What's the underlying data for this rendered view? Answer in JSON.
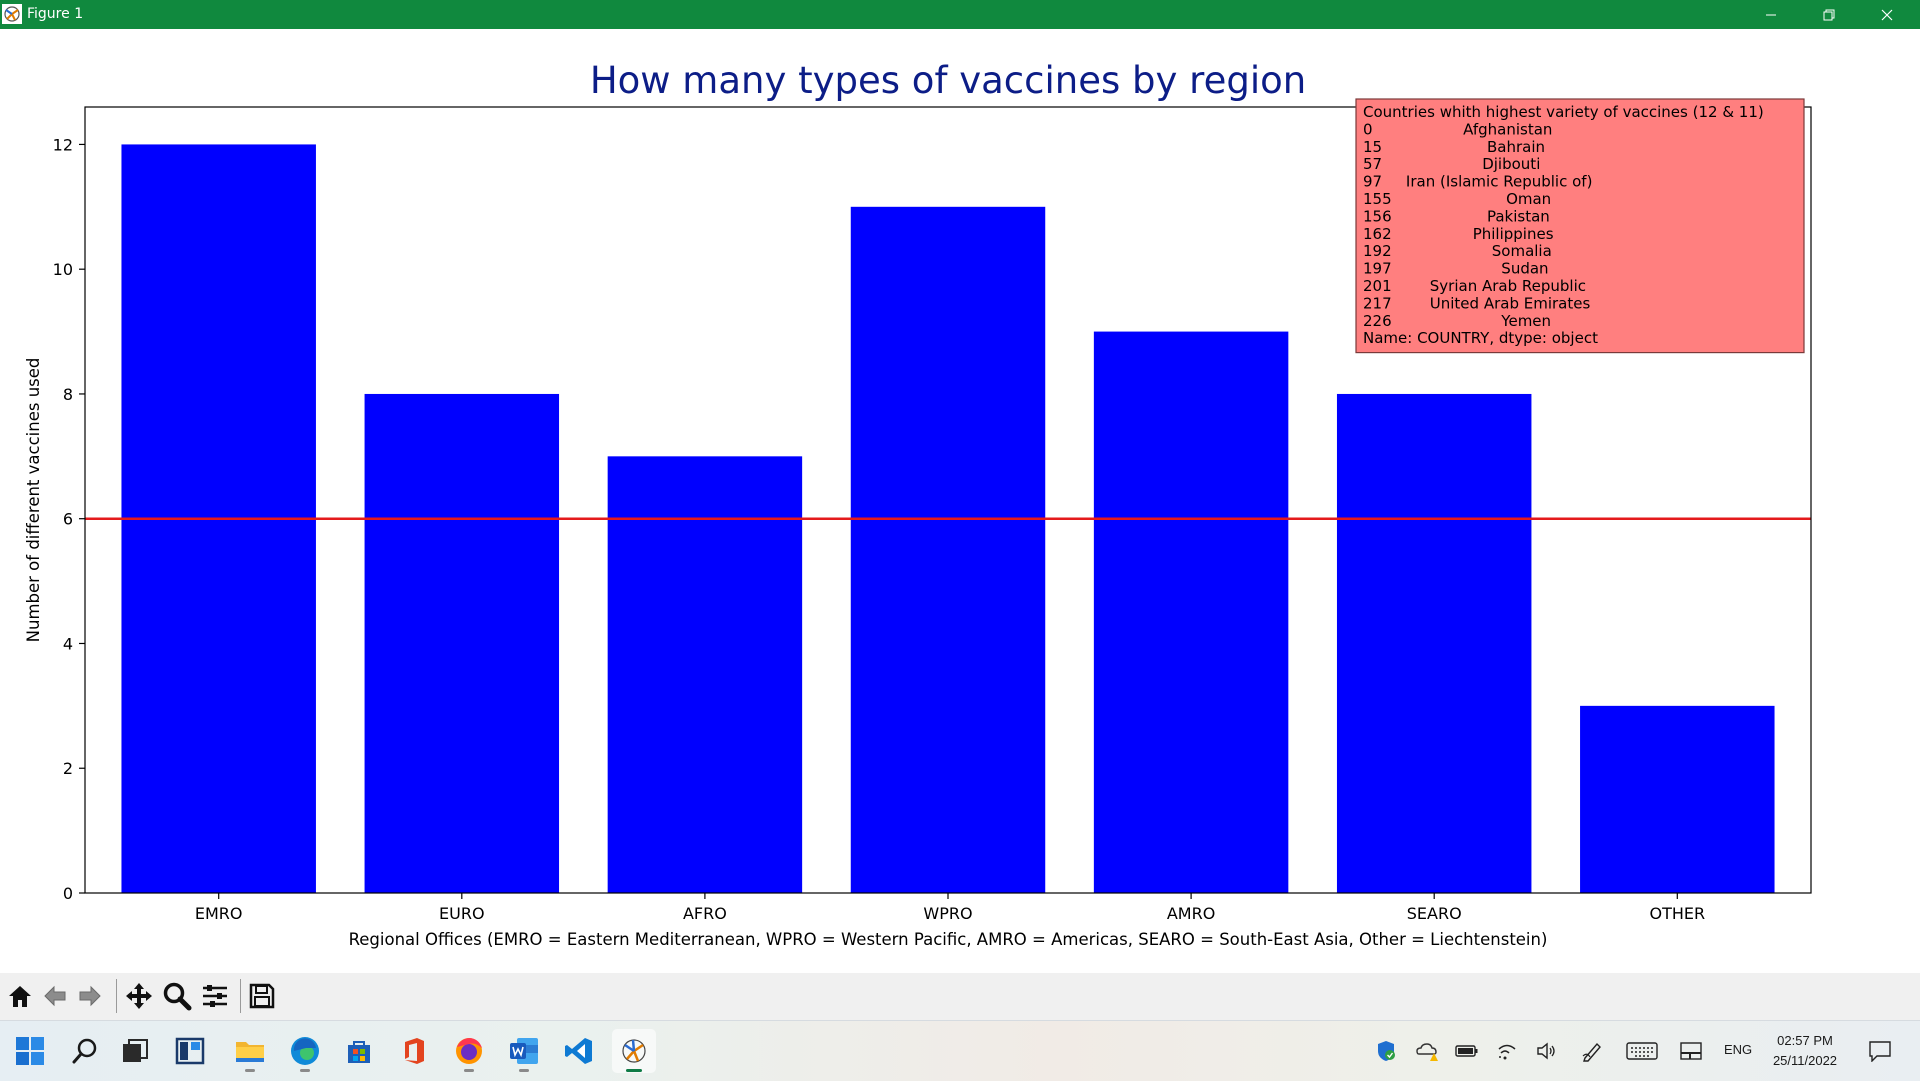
{
  "window": {
    "title": "Figure 1",
    "app_icon": "matplotlib-figure-icon"
  },
  "window_controls": [
    "minimize-icon",
    "restore-icon",
    "close-icon"
  ],
  "colors": {
    "titlebar": "#10893e",
    "bars": "#0000ff",
    "hline": "#e41a1c",
    "title": "#0c1d87",
    "legend_bg": "#ff7f7f"
  },
  "chart_data": {
    "type": "bar",
    "title": "How many types of vaccines by region",
    "categories": [
      "EMRO",
      "EURO",
      "AFRO",
      "WPRO",
      "AMRO",
      "SEARO",
      "OTHER"
    ],
    "values": [
      12,
      8,
      7,
      11,
      9,
      8,
      3
    ],
    "xlabel": "Regional Offices (EMRO = Eastern Mediterranean, WPRO = Western Pacific, AMRO = Americas, SEARO = South-East Asia, Other = Liechtenstein)",
    "ylabel": "Number of different vaccines used",
    "ylim": [
      0,
      12.6
    ],
    "yticks": [
      0,
      2,
      4,
      6,
      8,
      10,
      12
    ],
    "hline": 6,
    "grid": false,
    "annotation": {
      "placement": "top-right",
      "lines": [
        "Countries whith highest variety of vaccines (12 & 11)",
        "0                   Afghanistan",
        "15                      Bahrain",
        "57                     Djibouti",
        "97     Iran (Islamic Republic of)",
        "155                        Oman",
        "156                    Pakistan",
        "162                 Philippines",
        "192                     Somalia",
        "197                       Sudan",
        "201        Syrian Arab Republic",
        "217        United Arab Emirates",
        "226                       Yemen",
        "Name: COUNTRY, dtype: object"
      ]
    }
  },
  "toolbar": {
    "buttons": [
      "home-icon",
      "back-arrow-icon",
      "forward-arrow-icon",
      "pan-icon",
      "zoom-icon",
      "configure-subplots-icon",
      "save-icon"
    ]
  },
  "taskbar": {
    "apps": [
      "windows-start-icon",
      "search-icon",
      "task-view-icon",
      "widgets-icon",
      "file-explorer-icon",
      "edge-icon",
      "microsoft-store-icon",
      "office-icon",
      "firefox-icon",
      "word-icon",
      "vscode-icon",
      "python-figure-icon"
    ],
    "tray": [
      "security-shield-icon",
      "onedrive-warning-icon",
      "battery-icon",
      "wifi-icon",
      "volume-icon",
      "pen-icon",
      "touch-keyboard-icon",
      "tablet-mode-icon"
    ],
    "language": "ENG",
    "time": "02:57 PM",
    "date": "25/11/2022",
    "notification_icon": "notification-icon"
  }
}
